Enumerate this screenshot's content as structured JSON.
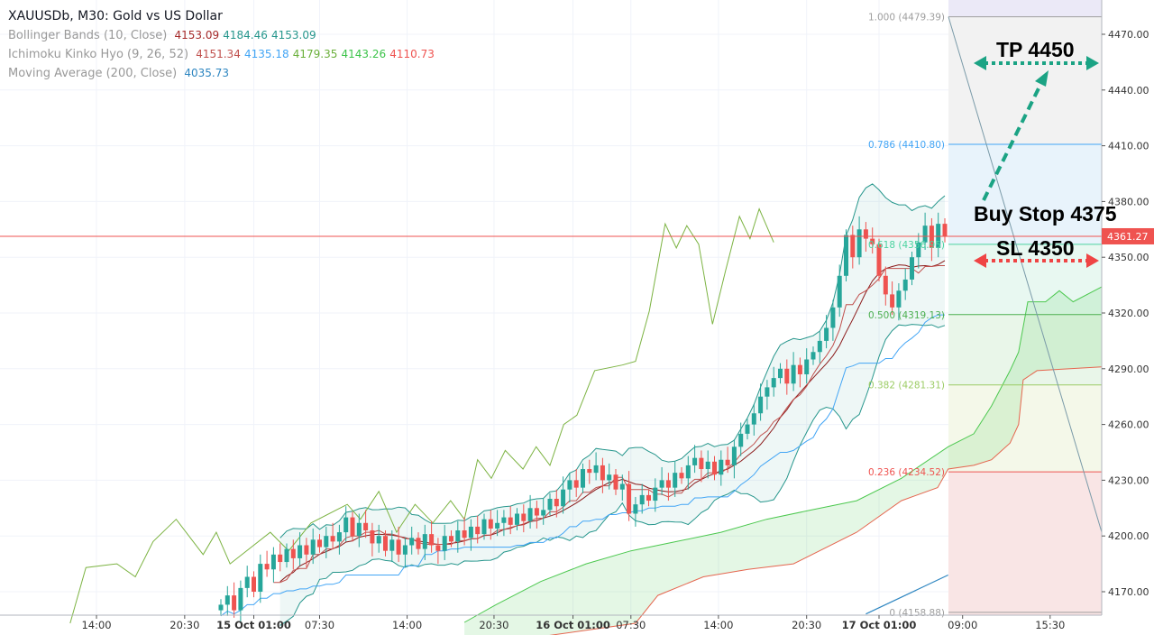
{
  "chart_data": {
    "type": "candlestick",
    "title": "XAUUSDb, M30: Gold vs US Dollar",
    "indicators": [
      {
        "name": "Bollinger Bands (10, Close)",
        "values": [
          "4153.09",
          "4184.46",
          "4153.09"
        ],
        "colors": [
          "#a52a2a",
          "#26968c",
          "#26968c"
        ]
      },
      {
        "name": "Ichimoku Kinko Hyo (9, 26, 52)",
        "values": [
          "4151.34",
          "4135.18",
          "4179.35",
          "4143.26",
          "4110.73"
        ],
        "colors": [
          "#c0504d",
          "#42a5f5",
          "#6aaf3a",
          "#3cc34a",
          "#ef5350"
        ]
      },
      {
        "name": "Moving Average (200, Close)",
        "values": [
          "4035.73"
        ],
        "colors": [
          "#2e86c1"
        ]
      }
    ],
    "ylim": [
      4155,
      4480
    ],
    "y_ticks": [
      "4470.00",
      "4440.00",
      "4410.00",
      "4380.00",
      "4350.00",
      "4320.00",
      "4290.00",
      "4260.00",
      "4230.00",
      "4200.00",
      "4170.00"
    ],
    "x_ticks": [
      {
        "label": "14:00",
        "bar": -18.9,
        "bold": false
      },
      {
        "label": "20:30",
        "bar": -5.5,
        "bold": false
      },
      {
        "label": "15 Oct 01:00",
        "bar": 5,
        "bold": true
      },
      {
        "label": "07:30",
        "bar": 15,
        "bold": false
      },
      {
        "label": "14:00",
        "bar": 28.3,
        "bold": false
      },
      {
        "label": "20:30",
        "bar": 41.5,
        "bold": false
      },
      {
        "label": "16 Oct 01:00",
        "bar": 53.5,
        "bold": true
      },
      {
        "label": "07:30",
        "bar": 62.3,
        "bold": false
      },
      {
        "label": "14:00",
        "bar": 75.6,
        "bold": false
      },
      {
        "label": "20:30",
        "bar": 89,
        "bold": false
      },
      {
        "label": "17 Oct 01:00",
        "bar": 100,
        "bold": true
      },
      {
        "label": "09:00",
        "bar": 112.7,
        "bold": false
      },
      {
        "label": "15:30",
        "bar": 126,
        "bold": false
      }
    ],
    "closes": [
      4163,
      4168,
      4160,
      4172,
      4178,
      4170,
      4185,
      4182,
      4190,
      4186,
      4193,
      4188,
      4195,
      4190,
      4198,
      4194,
      4200,
      4197,
      4202,
      4210,
      4200,
      4207,
      4203,
      4196,
      4200,
      4192,
      4198,
      4190,
      4195,
      4199,
      4193,
      4201,
      4195,
      4192,
      4200,
      4197,
      4203,
      4199,
      4205,
      4201,
      4209,
      4204,
      4207,
      4210,
      4206,
      4212,
      4208,
      4215,
      4211,
      4214,
      4220,
      4216,
      4225,
      4230,
      4226,
      4236,
      4234,
      4238,
      4230,
      4233,
      4225,
      4228,
      4212,
      4217,
      4222,
      4219,
      4226,
      4230,
      4226,
      4234,
      4231,
      4238,
      4242,
      4236,
      4240,
      4233,
      4241,
      4238,
      4248,
      4255,
      4260,
      4266,
      4275,
      4280,
      4285,
      4290,
      4282,
      4292,
      4287,
      4295,
      4299,
      4305,
      4312,
      4323,
      4340,
      4362,
      4350,
      4365,
      4360,
      4357,
      4340,
      4330,
      4323,
      4332,
      4338,
      4350,
      4358,
      4367,
      4355,
      4368,
      4361
    ],
    "chikou_span": [
      [
        -22.9,
        4153
      ],
      [
        -20.5,
        4183
      ],
      [
        -15.8,
        4185
      ],
      [
        -13,
        4178
      ],
      [
        -10.3,
        4197
      ],
      [
        -6.8,
        4209
      ],
      [
        -2.7,
        4190
      ],
      [
        -0.7,
        4202
      ],
      [
        1.4,
        4185
      ],
      [
        7.5,
        4202
      ],
      [
        10.3,
        4192
      ],
      [
        13.7,
        4207
      ],
      [
        19.2,
        4217
      ],
      [
        21.2,
        4209
      ],
      [
        24,
        4224
      ],
      [
        26.7,
        4202
      ],
      [
        29.5,
        4217
      ],
      [
        32.2,
        4207
      ],
      [
        34.9,
        4219
      ],
      [
        37,
        4209
      ],
      [
        39,
        4241
      ],
      [
        41.1,
        4231
      ],
      [
        43.2,
        4246
      ],
      [
        45.9,
        4236
      ],
      [
        47.9,
        4248
      ],
      [
        50,
        4238
      ],
      [
        52.1,
        4260
      ],
      [
        54.1,
        4265
      ],
      [
        56.8,
        4289
      ],
      [
        61,
        4292
      ],
      [
        63,
        4294
      ],
      [
        65.1,
        4321
      ],
      [
        67.5,
        4368
      ],
      [
        69.2,
        4355
      ],
      [
        70.8,
        4367
      ],
      [
        72.6,
        4357
      ],
      [
        74.7,
        4314
      ],
      [
        76.7,
        4343
      ],
      [
        78.8,
        4372
      ],
      [
        80.4,
        4360
      ],
      [
        81.8,
        4376
      ],
      [
        84,
        4358
      ]
    ],
    "senkou_a": [
      [
        37,
        4153.5
      ],
      [
        41.8,
        4163
      ],
      [
        48.6,
        4175.5
      ],
      [
        55.5,
        4185
      ],
      [
        62.3,
        4192
      ],
      [
        69.2,
        4197
      ],
      [
        76,
        4202
      ],
      [
        82.9,
        4209
      ],
      [
        89.7,
        4214
      ],
      [
        96.6,
        4219
      ],
      [
        103.4,
        4231
      ],
      [
        110.5,
        4248
      ],
      [
        114.4,
        4255
      ],
      [
        117.1,
        4270
      ],
      [
        119.9,
        4289
      ],
      [
        121.2,
        4299
      ],
      [
        122.6,
        4326
      ],
      [
        125.3,
        4326
      ],
      [
        127.4,
        4332
      ],
      [
        129.5,
        4326
      ],
      [
        133.8,
        4334
      ]
    ],
    "senkou_b": [
      [
        37,
        4140
      ],
      [
        63,
        4153
      ],
      [
        66.4,
        4168
      ],
      [
        73.3,
        4178
      ],
      [
        80.1,
        4182
      ],
      [
        87,
        4185
      ],
      [
        96.6,
        4202
      ],
      [
        103.4,
        4219
      ],
      [
        108.9,
        4226
      ],
      [
        110.5,
        4236
      ],
      [
        114.4,
        4238
      ],
      [
        117.1,
        4241
      ],
      [
        119.9,
        4250
      ],
      [
        121.2,
        4260
      ],
      [
        121.9,
        4284
      ],
      [
        124,
        4289
      ],
      [
        133.8,
        4291
      ]
    ],
    "ma200": [
      [
        98,
        4158
      ],
      [
        110.5,
        4179
      ]
    ],
    "last_price": "4361.27",
    "last_price_value": 4361.27,
    "fibonacci": [
      {
        "level": "1.000",
        "price": "4479.39",
        "value": 4479.39,
        "color": "#9e9e9e",
        "fill": "#ebe9f7"
      },
      {
        "level": "0.786",
        "price": "4410.80",
        "value": 4410.8,
        "color": "#42a5f5",
        "fill": "#f2f2f2"
      },
      {
        "level": "0.618",
        "price": "4356.95",
        "value": 4356.95,
        "color": "#4cd3a0",
        "fill": "#e8f3fb"
      },
      {
        "level": "0.500",
        "price": "4319.13",
        "value": 4319.13,
        "color": "#4caf50",
        "fill": "#e8f8f1"
      },
      {
        "level": "0.382",
        "price": "4281.31",
        "value": 4281.31,
        "color": "#9ccc65",
        "fill": "#e9f6e9"
      },
      {
        "level": "0.236",
        "price": "4234.52",
        "value": 4234.52,
        "color": "#ef5350",
        "fill": "#f4f8e9"
      },
      {
        "level": "0",
        "price": "4158.88",
        "value": 4158.88,
        "color": "#9e9e9e",
        "fill": "#f9e5e5"
      }
    ]
  },
  "annotations": {
    "tp": "TP 4450",
    "buy": "Buy Stop 4375",
    "sl": "SL 4350"
  },
  "colors": {
    "up": "#26a69a",
    "down": "#ef5350"
  }
}
